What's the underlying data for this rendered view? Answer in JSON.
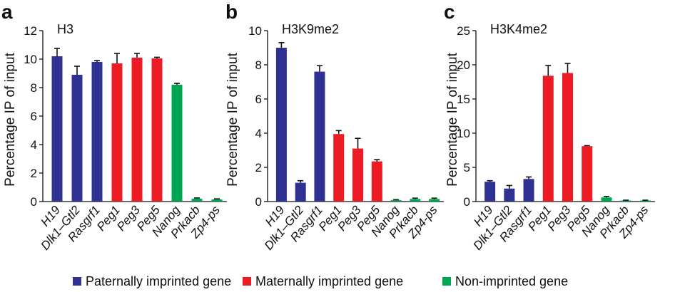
{
  "colors": {
    "paternal": "#2e3192",
    "maternal": "#ed1c24",
    "nonimprinted": "#00a651",
    "error": "#111111"
  },
  "legend": [
    {
      "label": "Paternally imprinted gene",
      "color_key": "paternal"
    },
    {
      "label": "Maternally imprinted gene",
      "color_key": "maternal"
    },
    {
      "label": "Non-imprinted gene",
      "color_key": "nonimprinted"
    }
  ],
  "chart_data": [
    {
      "type": "bar",
      "panel": "a",
      "title": "H3",
      "ylabel": "Percentage IP of input",
      "xlabel": "",
      "ylim": [
        0,
        12
      ],
      "yticks": [
        0,
        2,
        4,
        6,
        8,
        10,
        12
      ],
      "categories": [
        "H19",
        "Dlk1–Gtl2",
        "Rasgrf1",
        "Peg1",
        "Peg3",
        "Peg5",
        "Nanog",
        "Prkacb",
        "Zp4-ps"
      ],
      "groups": [
        "paternal",
        "paternal",
        "paternal",
        "maternal",
        "maternal",
        "maternal",
        "nonimprinted",
        "nonimprinted",
        "nonimprinted"
      ],
      "values": [
        10.2,
        8.9,
        9.8,
        9.7,
        10.1,
        10.05,
        8.2,
        0.2,
        0.15
      ],
      "errors": [
        0.55,
        0.6,
        0.1,
        0.7,
        0.3,
        0.08,
        0.1,
        0.05,
        0.04
      ]
    },
    {
      "type": "bar",
      "panel": "b",
      "title": "H3K9me2",
      "ylabel": "Percentage IP of input",
      "xlabel": "",
      "ylim": [
        0,
        10
      ],
      "yticks": [
        0,
        2,
        4,
        6,
        8,
        10
      ],
      "categories": [
        "H19",
        "Dlk1–Gtl2",
        "Rasgrf1",
        "Peg1",
        "Peg3",
        "Peg5",
        "Nanog",
        "Prkacb",
        "Zp4-ps"
      ],
      "groups": [
        "paternal",
        "paternal",
        "paternal",
        "maternal",
        "maternal",
        "maternal",
        "nonimprinted",
        "nonimprinted",
        "nonimprinted"
      ],
      "values": [
        9.0,
        1.1,
        7.6,
        3.95,
        3.1,
        2.35,
        0.08,
        0.15,
        0.15
      ],
      "errors": [
        0.3,
        0.12,
        0.35,
        0.2,
        0.6,
        0.1,
        0.03,
        0.05,
        0.05
      ]
    },
    {
      "type": "bar",
      "panel": "c",
      "title": "H3K4me2",
      "ylabel": "Percentage IP of input",
      "xlabel": "",
      "ylim": [
        0,
        25
      ],
      "yticks": [
        0,
        5,
        10,
        15,
        20,
        25
      ],
      "categories": [
        "H19",
        "Dlk1–Gtl2",
        "Rasgrf1",
        "Peg1",
        "Peg3",
        "Peg5",
        "Nanog",
        "Prkacb",
        "Zp4-ps"
      ],
      "groups": [
        "paternal",
        "paternal",
        "paternal",
        "maternal",
        "maternal",
        "maternal",
        "nonimprinted",
        "nonimprinted",
        "nonimprinted"
      ],
      "values": [
        2.9,
        1.9,
        3.3,
        18.4,
        18.8,
        8.1,
        0.6,
        0.15,
        0.15
      ],
      "errors": [
        0.15,
        0.45,
        0.3,
        1.5,
        1.4,
        0.08,
        0.15,
        0.05,
        0.05
      ]
    }
  ]
}
